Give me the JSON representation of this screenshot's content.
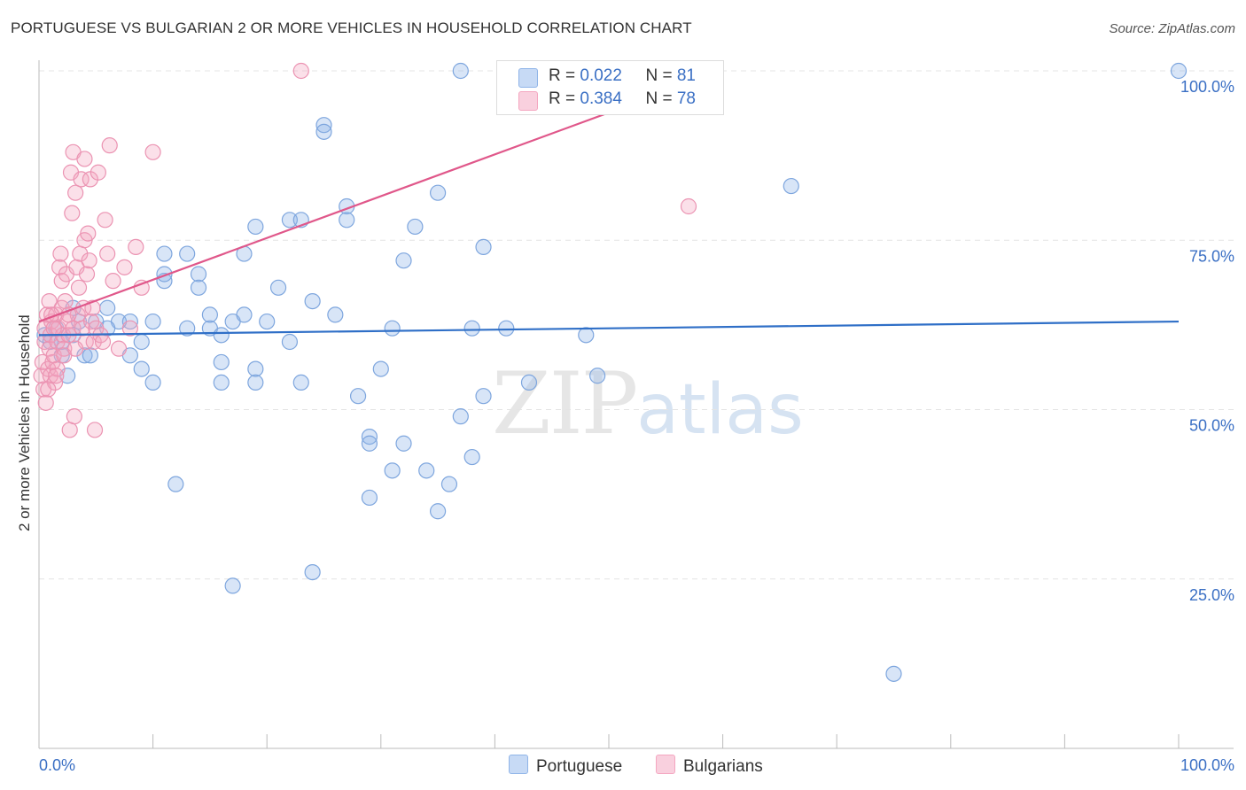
{
  "title": "PORTUGUESE VS BULGARIAN 2 OR MORE VEHICLES IN HOUSEHOLD CORRELATION CHART",
  "source": "Source: ZipAtlas.com",
  "legend": {
    "row1": {
      "r_label": "R = ",
      "r_value": "0.022",
      "n_label": "N = ",
      "n_value": "81"
    },
    "row2": {
      "r_label": "R = ",
      "r_value": "0.384",
      "n_label": "N = ",
      "n_value": "78"
    }
  },
  "watermark": {
    "zip": "ZIP",
    "atlas": "atlas"
  },
  "chart_data": {
    "type": "scatter",
    "title": "PORTUGUESE VS BULGARIAN 2 OR MORE VEHICLES IN HOUSEHOLD CORRELATION CHART",
    "xlabel": "",
    "ylabel": "2 or more Vehicles in Household",
    "xlim": [
      0,
      100
    ],
    "ylim": [
      0,
      100
    ],
    "x_tick_labels": [
      "0.0%",
      "100.0%"
    ],
    "y_tick_labels": [
      "25.0%",
      "50.0%",
      "75.0%",
      "100.0%"
    ],
    "y_ticks": [
      25,
      50,
      75,
      100
    ],
    "grid": true,
    "legend_position": "top-center",
    "colors": {
      "Portuguese": "#8fb4e8",
      "Bulgarians": "#f4a6c0",
      "blue_line": "#2f6fc7",
      "pink_line": "#e0578a"
    },
    "series": [
      {
        "name": "Portuguese",
        "trend": {
          "x": [
            0,
            100
          ],
          "y": [
            61.0,
            63.0
          ]
        },
        "points": [
          [
            0.5,
            61
          ],
          [
            1,
            60
          ],
          [
            1.5,
            62
          ],
          [
            2,
            58
          ],
          [
            2.5,
            55
          ],
          [
            3,
            65
          ],
          [
            3.5,
            63
          ],
          [
            4,
            58
          ],
          [
            4.5,
            58
          ],
          [
            5,
            63
          ],
          [
            6,
            65
          ],
          [
            7,
            63
          ],
          [
            8,
            58
          ],
          [
            8,
            63
          ],
          [
            9,
            60
          ],
          [
            9,
            56
          ],
          [
            10,
            54
          ],
          [
            10,
            63
          ],
          [
            11,
            73
          ],
          [
            11,
            69
          ],
          [
            11,
            70
          ],
          [
            12,
            39
          ],
          [
            13,
            62
          ],
          [
            13,
            73
          ],
          [
            14,
            70
          ],
          [
            14,
            68
          ],
          [
            15,
            62
          ],
          [
            15,
            64
          ],
          [
            16,
            54
          ],
          [
            16,
            57
          ],
          [
            16,
            61
          ],
          [
            17,
            63
          ],
          [
            17,
            24
          ],
          [
            18,
            73
          ],
          [
            18,
            64
          ],
          [
            19,
            56
          ],
          [
            19,
            54
          ],
          [
            19,
            77
          ],
          [
            20,
            63
          ],
          [
            21,
            68
          ],
          [
            22,
            60
          ],
          [
            22,
            78
          ],
          [
            23,
            78
          ],
          [
            23,
            54
          ],
          [
            24,
            66
          ],
          [
            24,
            26
          ],
          [
            25,
            92
          ],
          [
            25,
            91
          ],
          [
            26,
            64
          ],
          [
            27,
            78
          ],
          [
            27,
            80
          ],
          [
            28,
            52
          ],
          [
            29,
            46
          ],
          [
            29,
            45
          ],
          [
            29,
            37
          ],
          [
            30,
            56
          ],
          [
            31,
            41
          ],
          [
            31,
            62
          ],
          [
            32,
            72
          ],
          [
            32,
            45
          ],
          [
            33,
            77
          ],
          [
            34,
            41
          ],
          [
            35,
            82
          ],
          [
            35,
            35
          ],
          [
            36,
            39
          ],
          [
            37,
            100
          ],
          [
            37,
            49
          ],
          [
            38,
            43
          ],
          [
            38,
            62
          ],
          [
            39,
            52
          ],
          [
            39,
            74
          ],
          [
            41,
            62
          ],
          [
            43,
            54
          ],
          [
            48,
            61
          ],
          [
            49,
            55
          ],
          [
            66,
            83
          ],
          [
            75,
            11
          ],
          [
            100,
            100
          ],
          [
            6,
            62
          ],
          [
            2,
            60
          ],
          [
            3,
            61
          ]
        ]
      },
      {
        "name": "Bulgarians",
        "trend": {
          "x": [
            0,
            60
          ],
          "y": [
            63.0,
            100.0
          ]
        },
        "points": [
          [
            0.2,
            55
          ],
          [
            0.3,
            57
          ],
          [
            0.4,
            53
          ],
          [
            0.5,
            60
          ],
          [
            0.5,
            62
          ],
          [
            0.6,
            51
          ],
          [
            0.7,
            64
          ],
          [
            0.8,
            56
          ],
          [
            0.9,
            59
          ],
          [
            1,
            61
          ],
          [
            1,
            55
          ],
          [
            1.1,
            63
          ],
          [
            1.2,
            57
          ],
          [
            1.3,
            58
          ],
          [
            1.4,
            54
          ],
          [
            1.5,
            64
          ],
          [
            1.6,
            60
          ],
          [
            1.7,
            62
          ],
          [
            1.8,
            71
          ],
          [
            1.9,
            73
          ],
          [
            2,
            69
          ],
          [
            2,
            65
          ],
          [
            2.1,
            61
          ],
          [
            2.2,
            59
          ],
          [
            2.3,
            66
          ],
          [
            2.4,
            70
          ],
          [
            2.5,
            63
          ],
          [
            2.6,
            61
          ],
          [
            2.7,
            47
          ],
          [
            2.8,
            85
          ],
          [
            2.9,
            79
          ],
          [
            3,
            88
          ],
          [
            3,
            62
          ],
          [
            3.1,
            49
          ],
          [
            3.2,
            82
          ],
          [
            3.3,
            71
          ],
          [
            3.4,
            64
          ],
          [
            3.5,
            68
          ],
          [
            3.6,
            73
          ],
          [
            3.7,
            84
          ],
          [
            3.8,
            62
          ],
          [
            3.9,
            65
          ],
          [
            4,
            75
          ],
          [
            4,
            87
          ],
          [
            4.1,
            60
          ],
          [
            4.2,
            70
          ],
          [
            4.3,
            76
          ],
          [
            4.4,
            72
          ],
          [
            4.5,
            84
          ],
          [
            4.6,
            63
          ],
          [
            4.7,
            65
          ],
          [
            4.8,
            60
          ],
          [
            4.9,
            47
          ],
          [
            5,
            62
          ],
          [
            5.2,
            85
          ],
          [
            5.4,
            61
          ],
          [
            5.6,
            60
          ],
          [
            5.8,
            78
          ],
          [
            6,
            73
          ],
          [
            6.2,
            89
          ],
          [
            6.5,
            69
          ],
          [
            7,
            59
          ],
          [
            7.5,
            71
          ],
          [
            8,
            62
          ],
          [
            8.5,
            74
          ],
          [
            9,
            68
          ],
          [
            10,
            88
          ],
          [
            23,
            100
          ],
          [
            57,
            80
          ],
          [
            1.6,
            56
          ],
          [
            2.2,
            58
          ],
          [
            0.9,
            66
          ],
          [
            1.1,
            64
          ],
          [
            1.3,
            62
          ],
          [
            1.5,
            55
          ],
          [
            0.8,
            53
          ],
          [
            2.6,
            64
          ],
          [
            3.2,
            59
          ]
        ]
      }
    ]
  }
}
